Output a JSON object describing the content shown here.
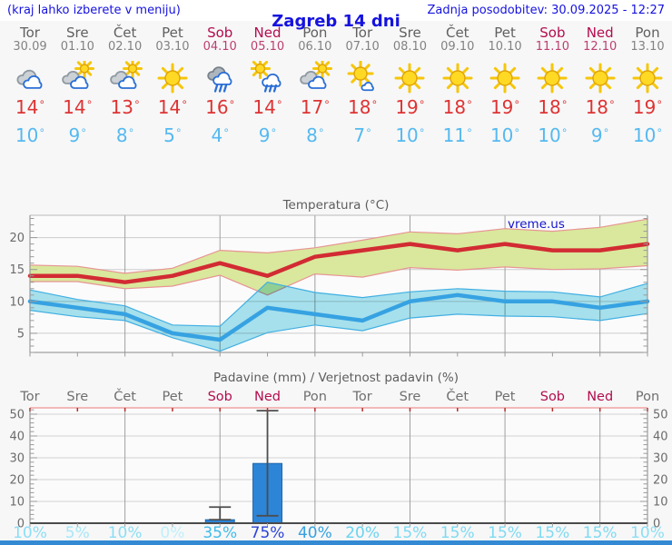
{
  "header": {
    "hint": "(kraj lahko izberete v meniju)",
    "title": "Zagreb 14 dni",
    "updated": "Zadnja posodobitev: 30.09.2025 - 12:27"
  },
  "units": {
    "degree": "°"
  },
  "colors": {
    "header_text": "#1512df",
    "weekday": "#606060",
    "weekday_date": "#828282",
    "weekend": "#b30d4e",
    "weekend_date": "#bb3f70",
    "tmax": "#de3333",
    "tmin": "#55b9f0",
    "watermark": "#1414cc",
    "footer_bar": "#3489d3"
  },
  "days": [
    {
      "name": "Tor",
      "date": "30.09",
      "weekend": false,
      "icon": "cloudy",
      "tmax": 14,
      "tmin": 10,
      "pop": "10%",
      "pop_color": "#8bdef5"
    },
    {
      "name": "Sre",
      "date": "01.10",
      "weekend": false,
      "icon": "partly-cloudy",
      "tmax": 14,
      "tmin": 9,
      "pop": "5%",
      "pop_color": "#a6e7f8"
    },
    {
      "name": "Čet",
      "date": "02.10",
      "weekend": false,
      "icon": "partly-cloudy",
      "tmax": 13,
      "tmin": 8,
      "pop": "10%",
      "pop_color": "#8bdef5"
    },
    {
      "name": "Pet",
      "date": "03.10",
      "weekend": false,
      "icon": "sunny",
      "tmax": 14,
      "tmin": 5,
      "pop": "0%",
      "pop_color": "#c0effa"
    },
    {
      "name": "Sob",
      "date": "04.10",
      "weekend": true,
      "icon": "rain",
      "tmax": 16,
      "tmin": 4,
      "pop": "35%",
      "pop_color": "#41bbea"
    },
    {
      "name": "Ned",
      "date": "05.10",
      "weekend": true,
      "icon": "sun-showers",
      "tmax": 14,
      "tmin": 9,
      "pop": "75%",
      "pop_color": "#2b44d7"
    },
    {
      "name": "Pon",
      "date": "06.10",
      "weekend": false,
      "icon": "partly-cloudy",
      "tmax": 17,
      "tmin": 8,
      "pop": "40%",
      "pop_color": "#35a0e1"
    },
    {
      "name": "Tor",
      "date": "07.10",
      "weekend": false,
      "icon": "mostly-sunny",
      "tmax": 18,
      "tmin": 7,
      "pop": "20%",
      "pop_color": "#6ad3f1"
    },
    {
      "name": "Sre",
      "date": "08.10",
      "weekend": false,
      "icon": "sunny",
      "tmax": 19,
      "tmin": 10,
      "pop": "15%",
      "pop_color": "#7edaf3"
    },
    {
      "name": "Čet",
      "date": "09.10",
      "weekend": false,
      "icon": "sunny",
      "tmax": 18,
      "tmin": 11,
      "pop": "15%",
      "pop_color": "#7edaf3"
    },
    {
      "name": "Pet",
      "date": "10.10",
      "weekend": false,
      "icon": "sunny",
      "tmax": 19,
      "tmin": 10,
      "pop": "15%",
      "pop_color": "#7edaf3"
    },
    {
      "name": "Sob",
      "date": "11.10",
      "weekend": true,
      "icon": "sunny",
      "tmax": 18,
      "tmin": 10,
      "pop": "15%",
      "pop_color": "#7edaf3"
    },
    {
      "name": "Ned",
      "date": "12.10",
      "weekend": true,
      "icon": "sunny",
      "tmax": 18,
      "tmin": 9,
      "pop": "15%",
      "pop_color": "#7edaf3"
    },
    {
      "name": "Pon",
      "date": "13.10",
      "weekend": false,
      "icon": "sunny",
      "tmax": 19,
      "tmin": 10,
      "pop": "10%",
      "pop_color": "#8bdef5"
    }
  ],
  "chart_data": [
    {
      "type": "line",
      "title": "Temperatura (°C)",
      "watermark": "vreme.us",
      "x_categories": [
        "Tor",
        "Sre",
        "Čet",
        "Pet",
        "Sob",
        "Ned",
        "Pon",
        "Tor",
        "Sre",
        "Čet",
        "Pet",
        "Sob",
        "Ned",
        "Pon"
      ],
      "ylim": [
        2,
        23.5
      ],
      "yticks": [
        5,
        10,
        15,
        20
      ],
      "grid_x_at_days": [
        2,
        4,
        6,
        8,
        10,
        12
      ],
      "series": [
        {
          "name": "max-temperatura",
          "color": "#d22b33",
          "width": 4.5,
          "values": [
            14,
            14,
            13,
            14,
            16,
            14,
            17,
            18,
            19,
            18,
            19,
            18,
            18,
            19
          ]
        },
        {
          "name": "min-temperatura",
          "color": "#36a2e2",
          "width": 4.5,
          "values": [
            10,
            9,
            8,
            5,
            4,
            9,
            8,
            7,
            10,
            11,
            10,
            10,
            9,
            10
          ]
        }
      ],
      "bands": [
        {
          "name": "max-range",
          "fill": "#d9e89c",
          "edge": "#e89494",
          "upper": [
            15.7,
            15.5,
            14.4,
            15.2,
            18.0,
            17.6,
            18.4,
            19.6,
            20.9,
            20.6,
            21.4,
            21.0,
            21.6,
            22.9
          ],
          "lower": [
            13.1,
            13.1,
            12.0,
            12.4,
            14.1,
            11.0,
            14.3,
            13.8,
            15.3,
            14.9,
            15.4,
            15.0,
            15.1,
            15.6
          ]
        },
        {
          "name": "min-range",
          "fill": "#a9e4f0",
          "edge": "#41afe2",
          "blend": "multiply",
          "upper": [
            11.8,
            10.3,
            9.3,
            6.3,
            6.1,
            13.0,
            11.4,
            10.6,
            11.5,
            12.0,
            11.6,
            11.5,
            10.7,
            12.8
          ],
          "lower": [
            8.6,
            7.6,
            7.0,
            4.3,
            2.2,
            5.1,
            6.3,
            5.4,
            7.4,
            8.0,
            7.7,
            7.6,
            7.0,
            8.1
          ]
        }
      ]
    },
    {
      "type": "bar",
      "title": "Padavine (mm) / Verjetnost padavin (%)",
      "x_categories": [
        "Tor",
        "Sre",
        "Čet",
        "Pet",
        "Sob",
        "Ned",
        "Pon",
        "Tor",
        "Sre",
        "Čet",
        "Pet",
        "Sob",
        "Ned",
        "Pon"
      ],
      "ylim": [
        0,
        52.9
      ],
      "yticks": [
        0,
        10,
        20,
        30,
        40,
        50
      ],
      "grid_x_at_days": [
        2,
        4,
        6,
        8,
        10,
        12
      ],
      "bar_color": "#2d85d8",
      "values": [
        0,
        0,
        0,
        0,
        1.6,
        27.4,
        0,
        0,
        0,
        0,
        0,
        0,
        0,
        0
      ],
      "whiskers": [
        null,
        null,
        null,
        null,
        [
          1.6,
          7.4
        ],
        [
          3.4,
          51.6
        ],
        null,
        null,
        null,
        null,
        null,
        null,
        null,
        null
      ],
      "probabilities": [
        "10%",
        "5%",
        "10%",
        "0%",
        "35%",
        "75%",
        "40%",
        "20%",
        "15%",
        "15%",
        "15%",
        "15%",
        "15%",
        "10%"
      ]
    }
  ]
}
